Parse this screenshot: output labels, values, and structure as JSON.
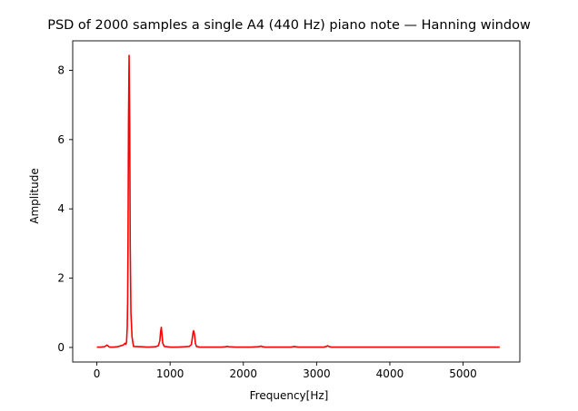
{
  "chart_data": {
    "type": "line",
    "title": "PSD of 2000 samples  a single A4 (440 Hz) piano note — Hanning window",
    "xlabel": "Frequency[Hz]",
    "ylabel": "Amplitude",
    "xlim": [
      -330,
      5775
    ],
    "ylim": [
      -0.42,
      8.85
    ],
    "xticks": [
      0,
      1000,
      2000,
      3000,
      4000,
      5000
    ],
    "yticks": [
      0,
      2,
      4,
      6,
      8
    ],
    "xtick_labels": [
      "0",
      "1000",
      "2000",
      "3000",
      "4000",
      "5000"
    ],
    "ytick_labels": [
      "0",
      "2",
      "4",
      "6",
      "8"
    ],
    "grid": false,
    "series": [
      {
        "color": "#ff0000",
        "x": [
          0,
          50,
          100,
          120,
          135,
          150,
          165,
          180,
          220,
          280,
          330,
          360,
          385,
          395,
          405,
          415,
          420,
          425,
          432,
          440,
          448,
          455,
          465,
          480,
          500,
          600,
          700,
          800,
          840,
          860,
          870,
          880,
          890,
          900,
          920,
          960,
          1000,
          1100,
          1200,
          1260,
          1290,
          1305,
          1315,
          1320,
          1325,
          1335,
          1345,
          1360,
          1400,
          1500,
          1700,
          1760,
          1780,
          1800,
          1900,
          2100,
          2200,
          2230,
          2245,
          2260,
          2300,
          2500,
          2650,
          2680,
          2695,
          2710,
          2750,
          3000,
          3100,
          3135,
          3150,
          3165,
          3200,
          3500,
          4000,
          4500,
          5000,
          5500
        ],
        "y": [
          0.01,
          0.01,
          0.02,
          0.04,
          0.07,
          0.05,
          0.02,
          0.01,
          0.01,
          0.02,
          0.05,
          0.07,
          0.12,
          0.09,
          0.15,
          0.6,
          1.35,
          3.0,
          6.5,
          8.43,
          6.5,
          3.0,
          1.0,
          0.3,
          0.03,
          0.02,
          0.01,
          0.02,
          0.05,
          0.2,
          0.45,
          0.58,
          0.35,
          0.12,
          0.03,
          0.02,
          0.01,
          0.01,
          0.02,
          0.03,
          0.08,
          0.3,
          0.45,
          0.48,
          0.46,
          0.35,
          0.12,
          0.03,
          0.01,
          0.01,
          0.01,
          0.02,
          0.03,
          0.02,
          0.01,
          0.01,
          0.02,
          0.03,
          0.04,
          0.02,
          0.01,
          0.01,
          0.01,
          0.02,
          0.03,
          0.02,
          0.01,
          0.01,
          0.01,
          0.03,
          0.05,
          0.03,
          0.01,
          0.01,
          0.01,
          0.01,
          0.01,
          0.01
        ]
      }
    ]
  }
}
